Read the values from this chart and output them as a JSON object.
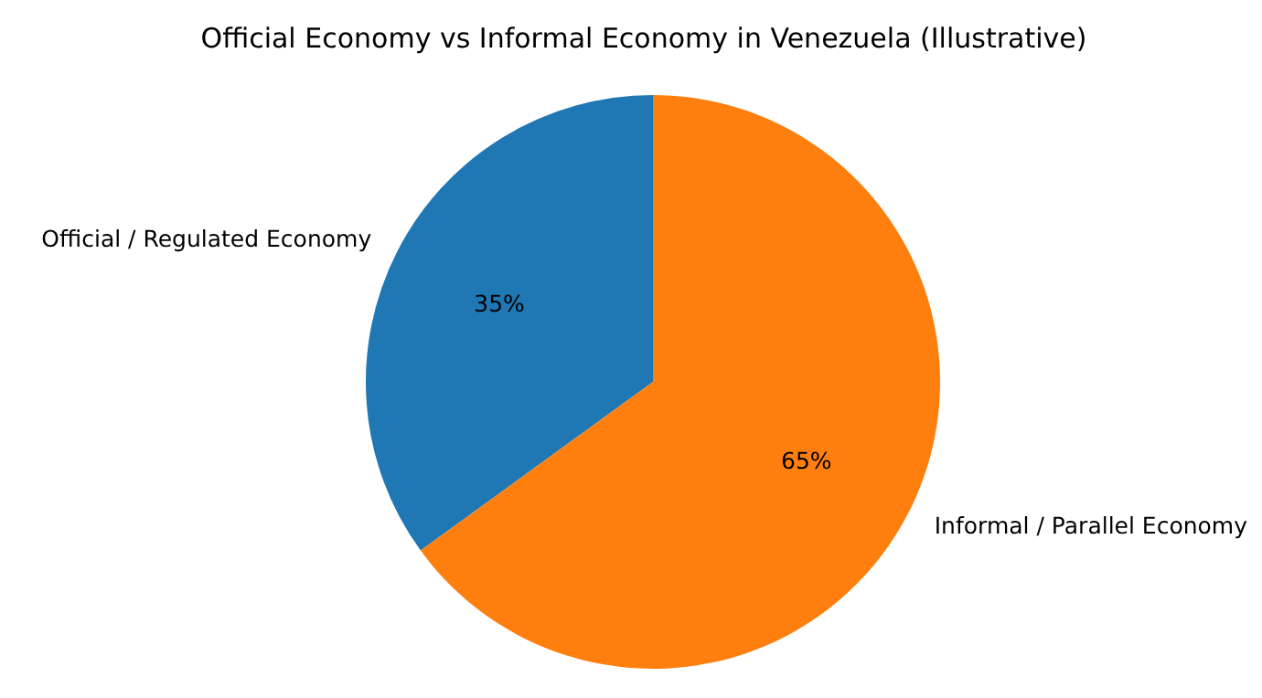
{
  "chart_data": {
    "type": "pie",
    "title": "Official Economy vs Informal Economy in Venezuela (Illustrative)",
    "categories": [
      "Official / Regulated Economy",
      "Informal / Parallel Economy"
    ],
    "values": [
      35,
      65
    ],
    "colors": [
      "#1f77b4",
      "#ff7f0e"
    ],
    "value_labels": [
      "35%",
      "65%"
    ]
  }
}
